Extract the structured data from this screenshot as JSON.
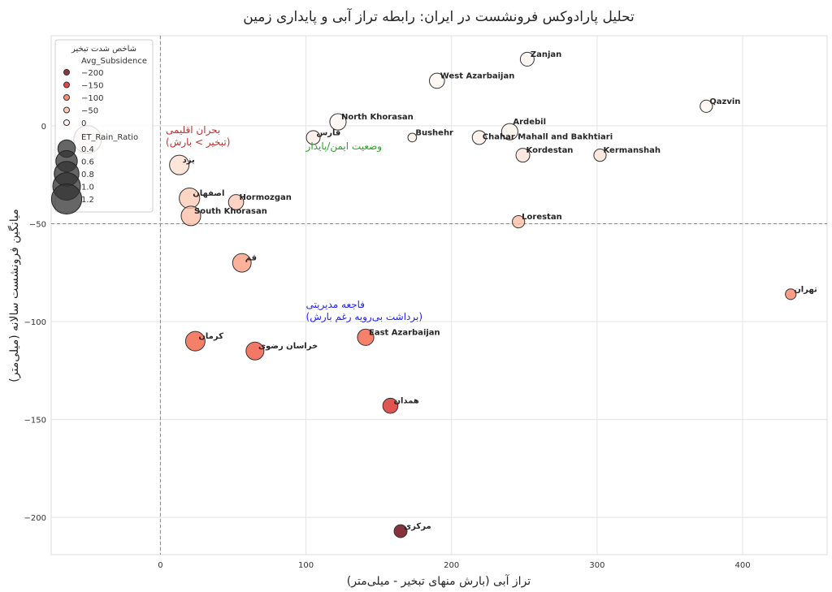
{
  "chart_data": {
    "type": "scatter",
    "title": "تحلیل پارادوکس فرونشست در ایران: رابطه تراز آبی و پایداری زمین",
    "xlabel": "تراز آبی (بارش منهای تبخیر - میلی‌متر)",
    "ylabel": "میانگین فرونشست سالانه (میلی‌متر)",
    "xlim": [
      -75,
      458
    ],
    "ylim": [
      -219,
      46
    ],
    "xticks": [
      0,
      100,
      200,
      300,
      400
    ],
    "yticks": [
      0,
      -50,
      -100,
      -150,
      -200
    ],
    "grid": true,
    "reference_lines": {
      "x": 0,
      "y": -50
    },
    "colormap": "Reds (reversed by subsidence)",
    "colors": {
      "light": "#fff5f0",
      "dark": "#67000d",
      "safe_text": "#2ca02c",
      "mgmt_text": "#1f1fff",
      "climate_text": "#c03030"
    },
    "legend": {
      "placement": "top-left",
      "title": "شاخص شدت تبخیر",
      "color_title": "Avg_Subsidence",
      "color_entries": [
        "−200",
        "−150",
        "−100",
        "−50",
        "0"
      ],
      "color_values": [
        -200,
        -150,
        -100,
        -50,
        0
      ],
      "size_title": "ET_Rain_Ratio",
      "size_entries": [
        "0.4",
        "0.6",
        "0.8",
        "1.0",
        "1.2"
      ],
      "size_values": [
        0.4,
        0.6,
        0.8,
        1.0,
        1.2
      ]
    },
    "annotations": [
      {
        "lines": [
          "بحران اقلیمی",
          "(تبخیر > بارش)"
        ],
        "x": -70,
        "y": -3,
        "color": "climate_text"
      },
      {
        "lines": [
          "وضعیت ایمن/پایدار"
        ],
        "x": 100,
        "y": -8,
        "color": "safe_text"
      },
      {
        "lines": [
          "فاجعه مدیریتی",
          "(برداشت بی‌رویه رغم بارش)"
        ],
        "x": 100,
        "y": -93,
        "color": "mgmt_text"
      }
    ],
    "points": [
      {
        "label": "Zanjan",
        "x": 252,
        "y": 34,
        "ratio": 0.25
      },
      {
        "label": "West Azarbaijan",
        "x": 190,
        "y": 23,
        "ratio": 0.3
      },
      {
        "label": "Qazvin",
        "x": 375,
        "y": 10,
        "ratio": 0.2
      },
      {
        "label": "North Khorasan",
        "x": 122,
        "y": 2,
        "ratio": 0.35
      },
      {
        "label": "Ardebil",
        "x": 240,
        "y": -3,
        "ratio": 0.35
      },
      {
        "label": "فارس",
        "x": 105,
        "y": -6,
        "ratio": 0.25
      },
      {
        "label": "Bushehr",
        "x": 173,
        "y": -6,
        "ratio": 0.1
      },
      {
        "label": "Chahar Mahall and Bakhtiari",
        "x": 219,
        "y": -6,
        "ratio": 0.25
      },
      {
        "label": "Kordestan",
        "x": 249,
        "y": -15,
        "ratio": 0.25
      },
      {
        "label": "Kermanshah",
        "x": 302,
        "y": -15,
        "ratio": 0.2
      },
      {
        "label": "",
        "x": -50,
        "y": -7,
        "ratio": 1.0
      },
      {
        "label": "یزد",
        "x": 13,
        "y": -20,
        "ratio": 0.5
      },
      {
        "label": "اصفهان",
        "x": 20,
        "y": -37,
        "ratio": 0.55
      },
      {
        "label": "Hormozgan",
        "x": 52,
        "y": -39,
        "ratio": 0.3
      },
      {
        "label": "South Khorasan",
        "x": 21,
        "y": -46,
        "ratio": 0.5
      },
      {
        "label": "Lorestan",
        "x": 246,
        "y": -49,
        "ratio": 0.2
      },
      {
        "label": "قم",
        "x": 56,
        "y": -70,
        "ratio": 0.45
      },
      {
        "label": "تهران",
        "x": 433,
        "y": -86,
        "ratio": 0.15
      },
      {
        "label": "East Azarbaijan",
        "x": 141,
        "y": -108,
        "ratio": 0.35
      },
      {
        "label": "کرمان",
        "x": 24,
        "y": -110,
        "ratio": 0.5
      },
      {
        "label": "خراسان رضوی",
        "x": 65,
        "y": -115,
        "ratio": 0.42
      },
      {
        "label": "همدان",
        "x": 158,
        "y": -143,
        "ratio": 0.3
      },
      {
        "label": "مرکزی",
        "x": 165,
        "y": -207,
        "ratio": 0.22
      }
    ]
  }
}
